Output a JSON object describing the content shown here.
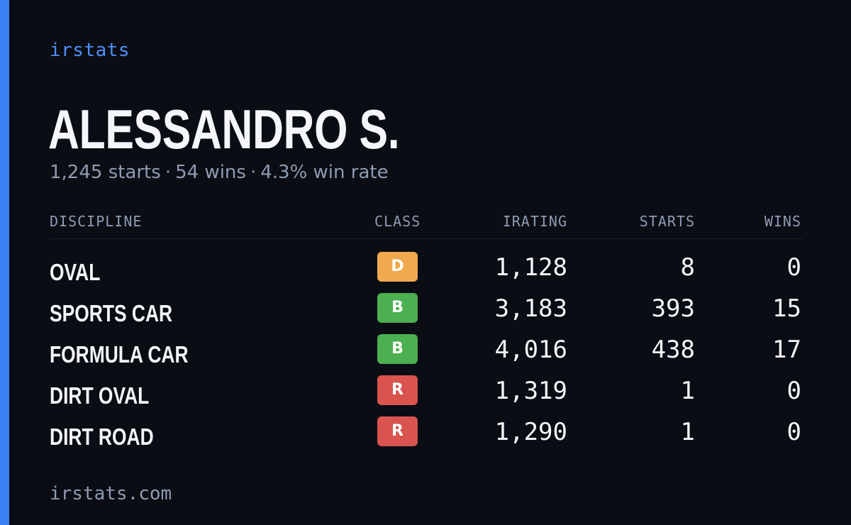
{
  "brand": "irstats",
  "player": {
    "name": "ALESSANDRO S."
  },
  "summary": {
    "starts": "1,245 starts",
    "wins": "54 wins",
    "win_rate": "4.3% win rate",
    "separator": "·"
  },
  "table": {
    "headers": {
      "discipline": "DISCIPLINE",
      "class": "CLASS",
      "irating": "IRATING",
      "starts": "STARTS",
      "wins": "WINS"
    },
    "rows": [
      {
        "discipline": "OVAL",
        "class": "D",
        "irating": "1,128",
        "starts": "8",
        "wins": "0"
      },
      {
        "discipline": "SPORTS CAR",
        "class": "B",
        "irating": "3,183",
        "starts": "393",
        "wins": "15"
      },
      {
        "discipline": "FORMULA CAR",
        "class": "B",
        "irating": "4,016",
        "starts": "438",
        "wins": "17"
      },
      {
        "discipline": "DIRT OVAL",
        "class": "R",
        "irating": "1,319",
        "starts": "1",
        "wins": "0"
      },
      {
        "discipline": "DIRT ROAD",
        "class": "R",
        "irating": "1,290",
        "starts": "1",
        "wins": "0"
      }
    ]
  },
  "footer": {
    "url": "irstats.com"
  },
  "colors": {
    "background": "#0a0d14",
    "accent": "#3b82f6",
    "class_D": "#f0a94c",
    "class_B": "#4caf50",
    "class_R": "#d9534f"
  }
}
